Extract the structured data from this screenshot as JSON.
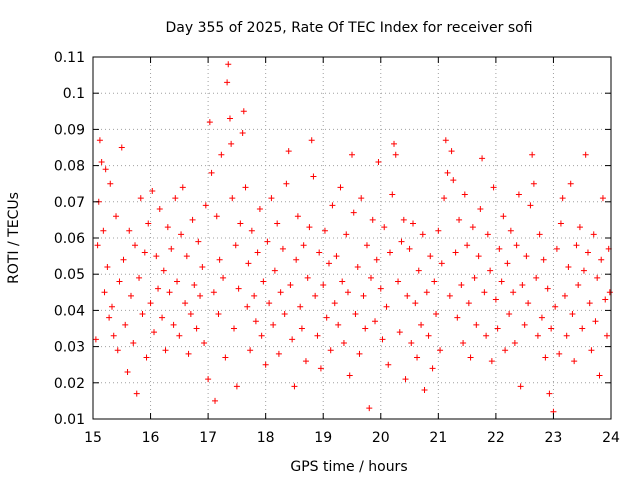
{
  "chart_data": {
    "type": "scatter",
    "title": "Day 355 of 2025, Rate Of TEC Index for receiver sofi",
    "xlabel": "GPS time / hours",
    "ylabel": "ROTI / TECUs",
    "xlim": [
      15,
      24
    ],
    "ylim": [
      0.01,
      0.11
    ],
    "xticks": [
      15,
      16,
      17,
      18,
      19,
      20,
      21,
      22,
      23,
      24
    ],
    "xtick_labels": [
      "15",
      "16",
      "17",
      "18",
      "19",
      "20",
      "21",
      "22",
      "23",
      "24"
    ],
    "yticks": [
      0.01,
      0.02,
      0.03,
      0.04,
      0.05,
      0.06,
      0.07,
      0.08,
      0.09,
      0.1,
      0.11
    ],
    "ytick_labels": [
      "0.01",
      "0.02",
      "0.03",
      "0.04",
      "0.05",
      "0.06",
      "0.07",
      "0.08",
      "0.09",
      "0.1",
      "0.11"
    ],
    "grid": true,
    "marker": "+",
    "series": [
      {
        "name": "ROTI",
        "color": "#ff0000",
        "points": [
          [
            15.05,
            0.032
          ],
          [
            15.08,
            0.058
          ],
          [
            15.1,
            0.07
          ],
          [
            15.12,
            0.087
          ],
          [
            15.15,
            0.081
          ],
          [
            15.18,
            0.062
          ],
          [
            15.2,
            0.045
          ],
          [
            15.22,
            0.079
          ],
          [
            15.25,
            0.052
          ],
          [
            15.28,
            0.038
          ],
          [
            15.3,
            0.075
          ],
          [
            15.33,
            0.041
          ],
          [
            15.36,
            0.033
          ],
          [
            15.4,
            0.066
          ],
          [
            15.43,
            0.029
          ],
          [
            15.46,
            0.048
          ],
          [
            15.5,
            0.085
          ],
          [
            15.53,
            0.054
          ],
          [
            15.56,
            0.036
          ],
          [
            15.6,
            0.023
          ],
          [
            15.63,
            0.062
          ],
          [
            15.66,
            0.044
          ],
          [
            15.7,
            0.031
          ],
          [
            15.73,
            0.058
          ],
          [
            15.76,
            0.017
          ],
          [
            15.8,
            0.049
          ],
          [
            15.83,
            0.071
          ],
          [
            15.86,
            0.039
          ],
          [
            15.9,
            0.056
          ],
          [
            15.93,
            0.027
          ],
          [
            15.96,
            0.064
          ],
          [
            16.0,
            0.042
          ],
          [
            16.03,
            0.073
          ],
          [
            16.06,
            0.034
          ],
          [
            16.1,
            0.055
          ],
          [
            16.13,
            0.046
          ],
          [
            16.16,
            0.068
          ],
          [
            16.2,
            0.038
          ],
          [
            16.23,
            0.051
          ],
          [
            16.26,
            0.029
          ],
          [
            16.3,
            0.063
          ],
          [
            16.33,
            0.045
          ],
          [
            16.36,
            0.057
          ],
          [
            16.4,
            0.036
          ],
          [
            16.43,
            0.071
          ],
          [
            16.46,
            0.048
          ],
          [
            16.5,
            0.033
          ],
          [
            16.53,
            0.061
          ],
          [
            16.56,
            0.074
          ],
          [
            16.6,
            0.042
          ],
          [
            16.63,
            0.055
          ],
          [
            16.66,
            0.028
          ],
          [
            16.7,
            0.039
          ],
          [
            16.73,
            0.065
          ],
          [
            16.76,
            0.047
          ],
          [
            16.8,
            0.035
          ],
          [
            16.83,
            0.059
          ],
          [
            16.86,
            0.044
          ],
          [
            16.9,
            0.052
          ],
          [
            16.93,
            0.031
          ],
          [
            16.96,
            0.069
          ],
          [
            17.0,
            0.021
          ],
          [
            17.03,
            0.092
          ],
          [
            17.06,
            0.078
          ],
          [
            17.1,
            0.045
          ],
          [
            17.12,
            0.015
          ],
          [
            17.15,
            0.066
          ],
          [
            17.18,
            0.039
          ],
          [
            17.2,
            0.054
          ],
          [
            17.23,
            0.083
          ],
          [
            17.26,
            0.049
          ],
          [
            17.3,
            0.027
          ],
          [
            17.33,
            0.103
          ],
          [
            17.35,
            0.108
          ],
          [
            17.38,
            0.093
          ],
          [
            17.4,
            0.086
          ],
          [
            17.42,
            0.071
          ],
          [
            17.45,
            0.035
          ],
          [
            17.48,
            0.058
          ],
          [
            17.5,
            0.019
          ],
          [
            17.53,
            0.046
          ],
          [
            17.56,
            0.064
          ],
          [
            17.6,
            0.089
          ],
          [
            17.62,
            0.095
          ],
          [
            17.65,
            0.074
          ],
          [
            17.68,
            0.041
          ],
          [
            17.7,
            0.053
          ],
          [
            17.73,
            0.029
          ],
          [
            17.76,
            0.062
          ],
          [
            17.8,
            0.044
          ],
          [
            17.83,
            0.037
          ],
          [
            17.86,
            0.056
          ],
          [
            17.9,
            0.068
          ],
          [
            17.93,
            0.033
          ],
          [
            17.96,
            0.048
          ],
          [
            18.0,
            0.025
          ],
          [
            18.03,
            0.059
          ],
          [
            18.06,
            0.042
          ],
          [
            18.1,
            0.071
          ],
          [
            18.13,
            0.036
          ],
          [
            18.16,
            0.051
          ],
          [
            18.2,
            0.064
          ],
          [
            18.23,
            0.028
          ],
          [
            18.26,
            0.045
          ],
          [
            18.3,
            0.057
          ],
          [
            18.33,
            0.039
          ],
          [
            18.36,
            0.075
          ],
          [
            18.4,
            0.084
          ],
          [
            18.43,
            0.047
          ],
          [
            18.46,
            0.032
          ],
          [
            18.5,
            0.019
          ],
          [
            18.53,
            0.054
          ],
          [
            18.56,
            0.066
          ],
          [
            18.6,
            0.041
          ],
          [
            18.63,
            0.035
          ],
          [
            18.66,
            0.058
          ],
          [
            18.7,
            0.026
          ],
          [
            18.73,
            0.049
          ],
          [
            18.76,
            0.063
          ],
          [
            18.8,
            0.087
          ],
          [
            18.83,
            0.077
          ],
          [
            18.86,
            0.044
          ],
          [
            18.9,
            0.033
          ],
          [
            18.93,
            0.056
          ],
          [
            18.96,
            0.024
          ],
          [
            19.0,
            0.047
          ],
          [
            19.03,
            0.062
          ],
          [
            19.06,
            0.038
          ],
          [
            19.1,
            0.053
          ],
          [
            19.13,
            0.029
          ],
          [
            19.16,
            0.069
          ],
          [
            19.2,
            0.042
          ],
          [
            19.23,
            0.055
          ],
          [
            19.26,
            0.036
          ],
          [
            19.3,
            0.074
          ],
          [
            19.33,
            0.048
          ],
          [
            19.36,
            0.031
          ],
          [
            19.4,
            0.061
          ],
          [
            19.43,
            0.045
          ],
          [
            19.46,
            0.022
          ],
          [
            19.5,
            0.083
          ],
          [
            19.53,
            0.067
          ],
          [
            19.56,
            0.039
          ],
          [
            19.6,
            0.052
          ],
          [
            19.63,
            0.028
          ],
          [
            19.66,
            0.071
          ],
          [
            19.7,
            0.044
          ],
          [
            19.73,
            0.035
          ],
          [
            19.76,
            0.058
          ],
          [
            19.8,
            0.013
          ],
          [
            19.83,
            0.049
          ],
          [
            19.86,
            0.065
          ],
          [
            19.9,
            0.037
          ],
          [
            19.93,
            0.054
          ],
          [
            19.96,
            0.081
          ],
          [
            20.0,
            0.046
          ],
          [
            20.03,
            0.032
          ],
          [
            20.06,
            0.063
          ],
          [
            20.1,
            0.041
          ],
          [
            20.13,
            0.025
          ],
          [
            20.16,
            0.056
          ],
          [
            20.2,
            0.072
          ],
          [
            20.23,
            0.086
          ],
          [
            20.26,
            0.083
          ],
          [
            20.3,
            0.048
          ],
          [
            20.33,
            0.034
          ],
          [
            20.36,
            0.059
          ],
          [
            20.4,
            0.065
          ],
          [
            20.43,
            0.021
          ],
          [
            20.46,
            0.044
          ],
          [
            20.5,
            0.057
          ],
          [
            20.53,
            0.031
          ],
          [
            20.56,
            0.064
          ],
          [
            20.6,
            0.042
          ],
          [
            20.63,
            0.027
          ],
          [
            20.66,
            0.051
          ],
          [
            20.7,
            0.036
          ],
          [
            20.73,
            0.061
          ],
          [
            20.76,
            0.018
          ],
          [
            20.8,
            0.045
          ],
          [
            20.83,
            0.033
          ],
          [
            20.86,
            0.055
          ],
          [
            20.9,
            0.024
          ],
          [
            20.93,
            0.048
          ],
          [
            20.96,
            0.039
          ],
          [
            21.0,
            0.062
          ],
          [
            21.03,
            0.029
          ],
          [
            21.06,
            0.053
          ],
          [
            21.1,
            0.071
          ],
          [
            21.13,
            0.087
          ],
          [
            21.16,
            0.078
          ],
          [
            21.2,
            0.044
          ],
          [
            21.23,
            0.084
          ],
          [
            21.26,
            0.076
          ],
          [
            21.3,
            0.056
          ],
          [
            21.33,
            0.038
          ],
          [
            21.36,
            0.065
          ],
          [
            21.4,
            0.047
          ],
          [
            21.43,
            0.031
          ],
          [
            21.46,
            0.072
          ],
          [
            21.5,
            0.058
          ],
          [
            21.53,
            0.042
          ],
          [
            21.56,
            0.027
          ],
          [
            21.6,
            0.063
          ],
          [
            21.63,
            0.049
          ],
          [
            21.66,
            0.036
          ],
          [
            21.7,
            0.055
          ],
          [
            21.73,
            0.068
          ],
          [
            21.76,
            0.082
          ],
          [
            21.8,
            0.045
          ],
          [
            21.83,
            0.033
          ],
          [
            21.86,
            0.061
          ],
          [
            21.9,
            0.051
          ],
          [
            21.93,
            0.026
          ],
          [
            21.96,
            0.074
          ],
          [
            22.0,
            0.043
          ],
          [
            22.03,
            0.035
          ],
          [
            22.06,
            0.057
          ],
          [
            22.1,
            0.048
          ],
          [
            22.13,
            0.066
          ],
          [
            22.16,
            0.029
          ],
          [
            22.2,
            0.053
          ],
          [
            22.23,
            0.039
          ],
          [
            22.26,
            0.062
          ],
          [
            22.3,
            0.045
          ],
          [
            22.33,
            0.031
          ],
          [
            22.36,
            0.058
          ],
          [
            22.4,
            0.072
          ],
          [
            22.43,
            0.019
          ],
          [
            22.46,
            0.047
          ],
          [
            22.5,
            0.036
          ],
          [
            22.53,
            0.055
          ],
          [
            22.56,
            0.042
          ],
          [
            22.6,
            0.069
          ],
          [
            22.63,
            0.083
          ],
          [
            22.66,
            0.075
          ],
          [
            22.7,
            0.049
          ],
          [
            22.73,
            0.033
          ],
          [
            22.76,
            0.061
          ],
          [
            22.8,
            0.038
          ],
          [
            22.83,
            0.054
          ],
          [
            22.86,
            0.027
          ],
          [
            22.9,
            0.046
          ],
          [
            22.93,
            0.017
          ],
          [
            22.96,
            0.035
          ],
          [
            23.0,
            0.012
          ],
          [
            23.03,
            0.041
          ],
          [
            23.06,
            0.057
          ],
          [
            23.1,
            0.028
          ],
          [
            23.13,
            0.064
          ],
          [
            23.16,
            0.071
          ],
          [
            23.2,
            0.044
          ],
          [
            23.23,
            0.033
          ],
          [
            23.26,
            0.052
          ],
          [
            23.3,
            0.075
          ],
          [
            23.33,
            0.039
          ],
          [
            23.36,
            0.026
          ],
          [
            23.4,
            0.058
          ],
          [
            23.43,
            0.047
          ],
          [
            23.46,
            0.063
          ],
          [
            23.5,
            0.035
          ],
          [
            23.53,
            0.051
          ],
          [
            23.56,
            0.083
          ],
          [
            23.6,
            0.056
          ],
          [
            23.63,
            0.042
          ],
          [
            23.66,
            0.029
          ],
          [
            23.7,
            0.061
          ],
          [
            23.73,
            0.037
          ],
          [
            23.76,
            0.049
          ],
          [
            23.8,
            0.022
          ],
          [
            23.83,
            0.054
          ],
          [
            23.86,
            0.071
          ],
          [
            23.9,
            0.043
          ],
          [
            23.93,
            0.033
          ],
          [
            23.96,
            0.057
          ],
          [
            23.98,
            0.045
          ]
        ]
      }
    ]
  }
}
